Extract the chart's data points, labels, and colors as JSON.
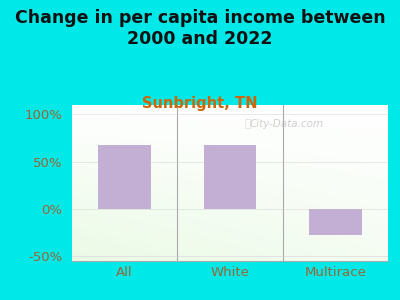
{
  "title": "Change in per capita income between\n2000 and 2022",
  "subtitle": "Sunbright, TN",
  "categories": [
    "All",
    "White",
    "Multirace"
  ],
  "values": [
    68,
    68,
    -27
  ],
  "bar_color": "#c4afd4",
  "background_color": "#00e8e8",
  "title_color": "#111111",
  "subtitle_color": "#cc6600",
  "axis_label_color": "#996633",
  "ylim": [
    -55,
    110
  ],
  "yticks": [
    -50,
    0,
    50,
    100
  ],
  "ytick_labels": [
    "-50%",
    "0%",
    "50%",
    "100%"
  ],
  "title_fontsize": 12.5,
  "subtitle_fontsize": 10.5,
  "tick_fontsize": 9.5,
  "watermark": "City-Data.com"
}
